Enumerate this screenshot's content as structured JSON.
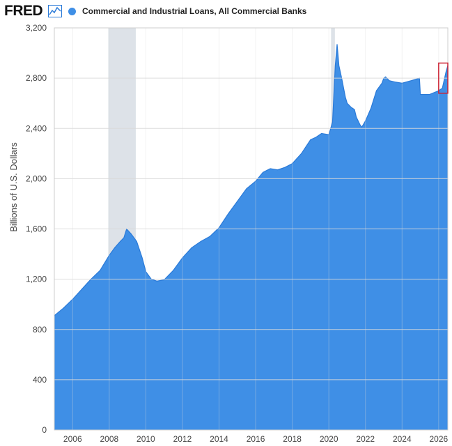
{
  "header": {
    "logo_text": "FRED",
    "logo_icon": "chart-line-icon",
    "series_title": "Commercial and Industrial Loans, All Commercial Banks"
  },
  "colors": {
    "series": "#3f8fe6",
    "series_line": "#2a7ad8",
    "recession": "#dde2e8",
    "grid": "#d9d9d9",
    "highlight_box": "#cc2233"
  },
  "chart_data": {
    "type": "area",
    "title": "Commercial and Industrial Loans, All Commercial Banks",
    "xlabel": "",
    "ylabel": "Billions of U.S. Dollars",
    "xlim": [
      2005.0,
      2026.5
    ],
    "ylim": [
      0,
      3200
    ],
    "x_ticks": [
      2006,
      2008,
      2010,
      2012,
      2014,
      2016,
      2018,
      2020,
      2022,
      2024,
      2026
    ],
    "y_ticks": [
      0,
      400,
      800,
      1200,
      1600,
      2000,
      2400,
      2800,
      3200
    ],
    "y_tick_labels": [
      "0",
      "400",
      "800",
      "1,200",
      "1,600",
      "2,000",
      "2,400",
      "2,800",
      "3,200"
    ],
    "grid": true,
    "legend": "top-left",
    "recessions": [
      [
        2007.95,
        2009.45
      ],
      [
        2020.12,
        2020.33
      ]
    ],
    "highlight_region": {
      "x": [
        2026.0,
        2026.5
      ],
      "y": [
        2680,
        2920
      ]
    },
    "series": [
      {
        "name": "Commercial and Industrial Loans, All Commercial Banks",
        "x": [
          2005.0,
          2005.5,
          2006.0,
          2006.5,
          2007.0,
          2007.5,
          2008.0,
          2008.3,
          2008.6,
          2008.8,
          2008.95,
          2009.2,
          2009.5,
          2009.8,
          2010.0,
          2010.3,
          2010.6,
          2011.0,
          2011.5,
          2012.0,
          2012.5,
          2013.0,
          2013.5,
          2014.0,
          2014.5,
          2015.0,
          2015.5,
          2016.0,
          2016.4,
          2016.8,
          2017.2,
          2017.6,
          2018.0,
          2018.5,
          2019.0,
          2019.3,
          2019.6,
          2020.0,
          2020.2,
          2020.35,
          2020.45,
          2020.55,
          2020.7,
          2020.9,
          2021.0,
          2021.2,
          2021.4,
          2021.5,
          2021.7,
          2021.8,
          2022.0,
          2022.3,
          2022.6,
          2022.9,
          2023.0,
          2023.1,
          2023.3,
          2023.6,
          2024.0,
          2024.5,
          2024.95,
          2025.0,
          2025.5,
          2026.0,
          2026.2,
          2026.4,
          2026.5
        ],
        "y": [
          910,
          970,
          1040,
          1120,
          1200,
          1270,
          1390,
          1450,
          1500,
          1530,
          1600,
          1560,
          1500,
          1370,
          1260,
          1200,
          1185,
          1195,
          1270,
          1370,
          1450,
          1500,
          1540,
          1610,
          1720,
          1820,
          1920,
          1980,
          2050,
          2080,
          2070,
          2090,
          2120,
          2200,
          2310,
          2330,
          2360,
          2350,
          2450,
          2900,
          3070,
          2900,
          2800,
          2650,
          2600,
          2570,
          2550,
          2490,
          2430,
          2410,
          2460,
          2560,
          2700,
          2760,
          2800,
          2810,
          2780,
          2770,
          2760,
          2780,
          2800,
          2670,
          2670,
          2700,
          2720,
          2850,
          2900
        ]
      }
    ]
  }
}
